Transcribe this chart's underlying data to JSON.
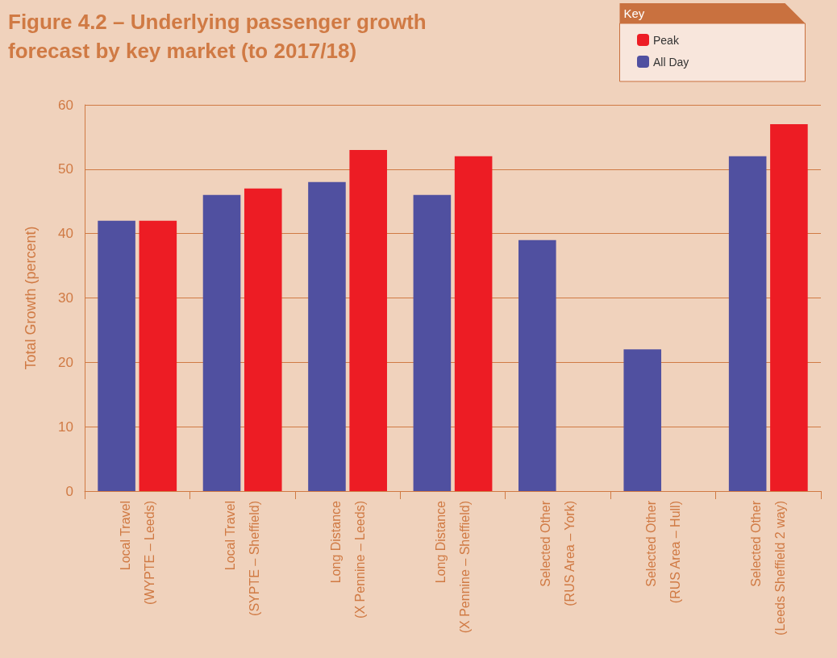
{
  "chart_data": {
    "type": "bar",
    "title": "Figure 4.2 – Underlying passenger growth forecast by key market (to 2017/18)",
    "ylabel": "Total Growth (percent)",
    "legend_title": "Key",
    "categories": [
      "Local Travel\n(WYPTE – Leeds)",
      "Local Travel\n(SYPTE – Sheffield)",
      "Long Distance\n(X Pennine – Leeds)",
      "Long Distance\n(X Pennine – Sheffield)",
      "Selected Other\n(RUS Area – York)",
      "Selected Other\n(RUS Area – Hull)",
      "Selected Other\n(Leeds Sheffield 2 way)"
    ],
    "series": [
      {
        "name": "All Day",
        "color": "#5050a0",
        "values": [
          42,
          46,
          48,
          46,
          39,
          22,
          52
        ]
      },
      {
        "name": "Peak",
        "color": "#ed1c24",
        "values": [
          42,
          47,
          53,
          52,
          null,
          null,
          57
        ]
      }
    ],
    "ylim": [
      0,
      60
    ],
    "yticks": [
      0,
      10,
      20,
      30,
      40,
      50,
      60
    ],
    "grid": "y",
    "legend": "top right"
  }
}
